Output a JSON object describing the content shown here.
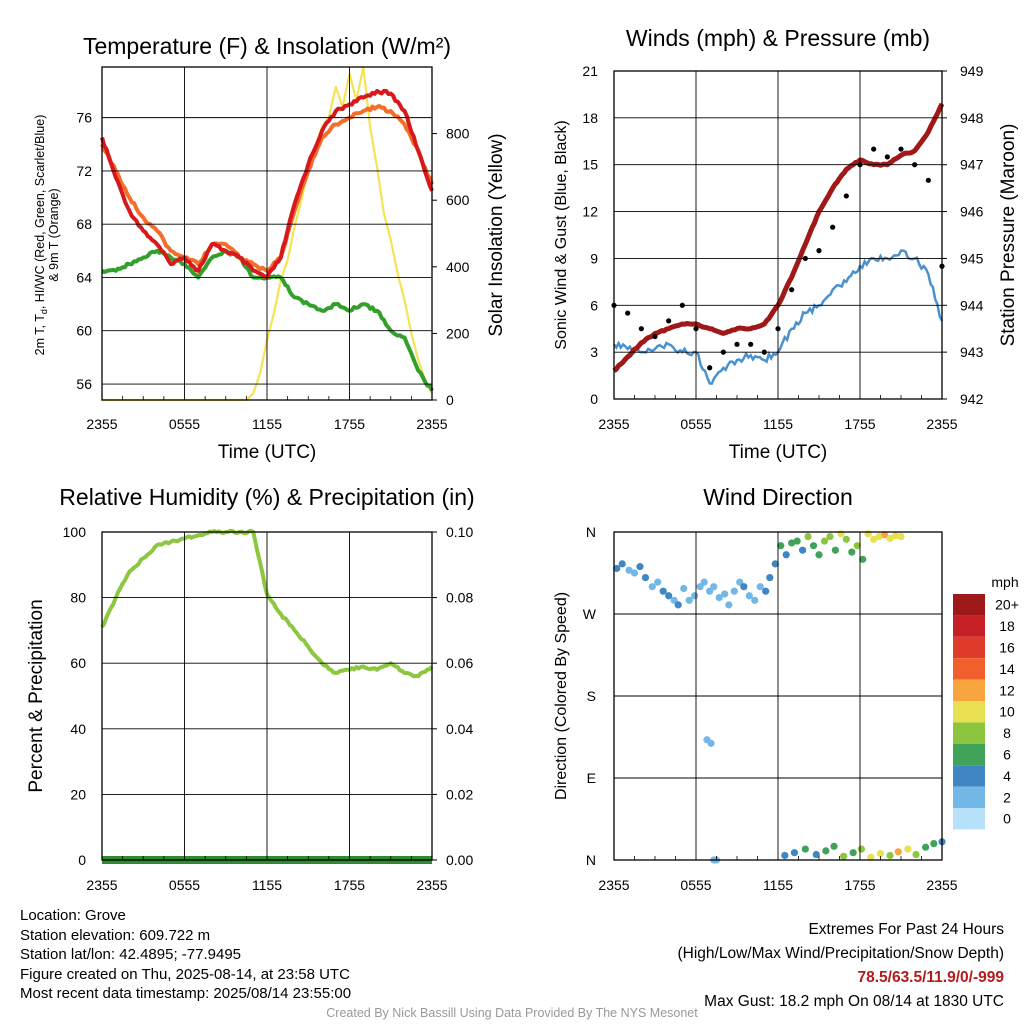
{
  "chart_data": [
    {
      "type": "line",
      "title": "Temperature (F) & Insolation (W/m²)",
      "xlabel": "Time (UTC)",
      "ylabel": "2m T, Td, HI/WC (Red, Green, Scarlet/Blue) & 9m T (Orange)",
      "ylabel_lines": [
        "2m T, T",
        "d",
        ", HI/WC (Red, Green, Scarlet/Blue)",
        "& 9m T (Orange)"
      ],
      "y2label": "Solar Insolation (Yellow)",
      "x_ticks": [
        "2355",
        "0555",
        "1155",
        "1755",
        "2355"
      ],
      "y_ticks": [
        "56",
        "60",
        "64",
        "68",
        "72",
        "76"
      ],
      "y2_ticks": [
        "0",
        "200",
        "400",
        "600",
        "800"
      ],
      "ylim": [
        54.8,
        79.8
      ],
      "y2lim": [
        0,
        1000
      ],
      "colors": {
        "temp_2m": "#d7191c",
        "dewpoint": "#33a02c",
        "heat_index": "#d7191c",
        "temp_9m": "#f46d2a",
        "insolation": "#f5e356"
      },
      "series": [
        {
          "name": "2m T",
          "x": [
            0,
            1,
            2,
            3,
            4,
            5,
            6,
            7,
            8,
            9,
            10,
            11,
            12,
            13,
            14,
            15,
            16,
            17,
            18,
            19,
            20,
            21,
            22,
            23,
            24
          ],
          "values": [
            74.5,
            71.5,
            69.0,
            67.5,
            66.5,
            65.0,
            65.5,
            64.5,
            66.5,
            66.0,
            65.5,
            64.5,
            64.0,
            65.5,
            69.5,
            72.5,
            75.0,
            76.5,
            77.0,
            77.5,
            78.0,
            77.8,
            76.5,
            73.5,
            70.5
          ]
        },
        {
          "name": "9m T",
          "x": [
            0,
            1,
            2,
            3,
            4,
            5,
            6,
            7,
            8,
            9,
            10,
            11,
            12,
            13,
            14,
            15,
            16,
            17,
            18,
            19,
            20,
            21,
            22,
            23,
            24
          ],
          "values": [
            74.0,
            72.0,
            70.0,
            68.5,
            67.5,
            66.0,
            65.5,
            65.0,
            66.5,
            66.5,
            65.5,
            65.0,
            64.5,
            65.5,
            69.0,
            72.0,
            74.5,
            75.5,
            76.0,
            76.5,
            76.8,
            76.5,
            75.5,
            73.5,
            71.0
          ]
        },
        {
          "name": "Td",
          "x": [
            0,
            1,
            2,
            3,
            4,
            5,
            6,
            7,
            8,
            9,
            10,
            11,
            12,
            13,
            14,
            15,
            16,
            17,
            18,
            19,
            20,
            21,
            22,
            23,
            24
          ],
          "values": [
            64.5,
            64.5,
            65.0,
            65.5,
            66.0,
            65.5,
            65.0,
            64.0,
            65.5,
            66.0,
            65.5,
            64.0,
            64.0,
            64.0,
            62.5,
            62.0,
            61.5,
            62.0,
            61.5,
            62.0,
            61.5,
            60.0,
            59.5,
            57.0,
            55.5
          ]
        },
        {
          "name": "Solar Insolation",
          "axis": "y2",
          "x": [
            0,
            10,
            10.5,
            11,
            11.5,
            12,
            12.5,
            13,
            13.5,
            14,
            14.5,
            15,
            15.5,
            16,
            16.5,
            17,
            17.5,
            18,
            18.5,
            19,
            19.5,
            20,
            20.5,
            21,
            21.5,
            22,
            22.5,
            23,
            23.5,
            24
          ],
          "values": [
            0,
            0,
            0,
            20,
            80,
            180,
            260,
            360,
            420,
            520,
            600,
            700,
            760,
            820,
            850,
            940,
            880,
            980,
            900,
            1000,
            820,
            700,
            560,
            480,
            380,
            300,
            200,
            120,
            60,
            20
          ]
        }
      ]
    },
    {
      "type": "scatter",
      "title": "Winds (mph) & Pressure (mb)",
      "xlabel": "Time (UTC)",
      "ylabel": "Sonic Wind & Gust (Blue, Black)",
      "y2label": "Station Pressure (Maroon)",
      "x_ticks": [
        "2355",
        "0555",
        "1155",
        "1755",
        "2355"
      ],
      "y_ticks": [
        "0",
        "3",
        "6",
        "9",
        "12",
        "15",
        "18",
        "21"
      ],
      "y2_ticks": [
        "942",
        "943",
        "944",
        "945",
        "946",
        "947",
        "948",
        "949"
      ],
      "ylim": [
        0,
        21
      ],
      "y2lim": [
        942,
        949
      ],
      "colors": {
        "wind": "#4a92cf",
        "gust": "#000000",
        "pressure": "#a01818"
      },
      "series": [
        {
          "name": "Sonic Wind",
          "x": [
            0,
            1,
            2,
            3,
            4,
            5,
            6,
            7,
            8,
            9,
            10,
            11,
            12,
            13,
            14,
            15,
            16,
            17,
            18,
            19,
            20,
            21,
            22,
            23,
            24
          ],
          "values": [
            3.5,
            3.2,
            3.0,
            3.2,
            3.5,
            3.0,
            3.0,
            1.0,
            2.0,
            2.5,
            2.8,
            2.5,
            3.0,
            4.5,
            5.5,
            6.0,
            7.0,
            7.5,
            8.5,
            9.0,
            9.0,
            9.5,
            9.0,
            8.0,
            5.0
          ]
        },
        {
          "name": "Gust",
          "x": [
            0,
            1,
            2,
            3,
            4,
            5,
            6,
            7,
            8,
            9,
            10,
            11,
            12,
            13,
            14,
            15,
            16,
            17,
            18,
            19,
            20,
            21,
            22,
            23,
            24
          ],
          "values": [
            6.0,
            5.5,
            4.5,
            4.0,
            5.0,
            6.0,
            4.5,
            2.0,
            3.0,
            3.5,
            3.5,
            3.0,
            4.5,
            7.0,
            9.0,
            9.5,
            11.0,
            13.0,
            15.0,
            16.0,
            15.5,
            16.0,
            15.0,
            14.0,
            8.5
          ]
        },
        {
          "name": "Station Pressure",
          "axis": "y2",
          "x": [
            0,
            1,
            2,
            3,
            4,
            5,
            6,
            7,
            8,
            9,
            10,
            11,
            12,
            13,
            14,
            15,
            16,
            17,
            18,
            19,
            20,
            21,
            22,
            23,
            24
          ],
          "values": [
            942.6,
            942.9,
            943.2,
            943.4,
            943.5,
            943.6,
            943.6,
            943.5,
            943.4,
            943.5,
            943.5,
            943.6,
            944.0,
            944.6,
            945.3,
            946.0,
            946.5,
            946.9,
            947.1,
            947.0,
            947.0,
            947.2,
            947.3,
            947.7,
            948.3
          ]
        }
      ]
    },
    {
      "type": "line",
      "title": "Relative Humidity (%) & Precipitation (in)",
      "ylabel": "Percent & Precipitation",
      "x_ticks": [
        "2355",
        "0555",
        "1155",
        "1755",
        "2355"
      ],
      "y_ticks": [
        "0",
        "20",
        "40",
        "60",
        "80",
        "100"
      ],
      "y2_ticks": [
        "0.00",
        "0.02",
        "0.04",
        "0.06",
        "0.08",
        "0.10"
      ],
      "ylim": [
        0,
        100
      ],
      "y2lim": [
        0,
        0.1
      ],
      "colors": {
        "rh": "#8dc63f",
        "precip": "#2e8b2e"
      },
      "series": [
        {
          "name": "Relative Humidity",
          "x": [
            0,
            1,
            2,
            3,
            4,
            5,
            6,
            7,
            8,
            9,
            10,
            11,
            12,
            13,
            14,
            15,
            16,
            17,
            18,
            19,
            20,
            21,
            22,
            23,
            24
          ],
          "values": [
            71,
            80,
            88,
            92,
            96,
            97,
            98,
            99,
            100,
            100,
            100,
            100,
            81,
            75,
            70,
            65,
            60,
            57,
            58,
            59,
            58,
            60,
            57,
            56,
            59
          ]
        },
        {
          "name": "Precipitation",
          "axis": "y2",
          "x": [
            0,
            24
          ],
          "values": [
            0.0,
            0.0
          ]
        }
      ]
    },
    {
      "type": "scatter",
      "title": "Wind Direction",
      "ylabel": "Direction (Colored By Speed)",
      "x_ticks": [
        "2355",
        "0555",
        "1155",
        "1755",
        "2355"
      ],
      "y_ticks": [
        "N",
        "E",
        "S",
        "W",
        "N"
      ],
      "ylim": [
        0,
        360
      ],
      "legend": {
        "title": "mph",
        "labels": [
          "20+",
          "18",
          "16",
          "14",
          "12",
          "10",
          "8",
          "6",
          "4",
          "2",
          "0"
        ],
        "colors": [
          "#9e1a1a",
          "#c62026",
          "#e03a2a",
          "#f0602c",
          "#f8a540",
          "#e8e051",
          "#8cc63f",
          "#41a35a",
          "#3f86c2",
          "#72b7e6",
          "#b6e1f8"
        ]
      },
      "series": [
        {
          "name": "Direction",
          "x": [
            0.2,
            0.6,
            1.1,
            1.5,
            1.9,
            2.3,
            2.8,
            3.2,
            3.6,
            4.0,
            4.4,
            4.7,
            5.1,
            5.5,
            5.9,
            6.3,
            6.6,
            7.0,
            7.3,
            7.7,
            8.1,
            8.4,
            8.8,
            9.2,
            9.5,
            9.9,
            10.3,
            10.7,
            11.1,
            11.4,
            11.8,
            12.2,
            12.6,
            13.0,
            13.4,
            13.8,
            14.2,
            14.6,
            15.0,
            15.4,
            15.8,
            16.2,
            16.6,
            17.0,
            17.4,
            17.8,
            18.2,
            18.6,
            19.0,
            19.4,
            19.8,
            20.2,
            20.6,
            21.0,
            12.5,
            13.2,
            14.0,
            14.8,
            15.5,
            16.1,
            16.8,
            17.5,
            18.1,
            18.8,
            19.5,
            20.2,
            20.8,
            21.5,
            22.1,
            22.8,
            23.4,
            24.0,
            6.8,
            7.1,
            7.3,
            7.5
          ],
          "values": [
            320,
            325,
            318,
            315,
            322,
            310,
            300,
            305,
            295,
            290,
            285,
            280,
            298,
            285,
            290,
            300,
            305,
            295,
            300,
            288,
            292,
            280,
            295,
            305,
            300,
            290,
            285,
            300,
            295,
            310,
            325,
            345,
            335,
            348,
            350,
            340,
            355,
            345,
            335,
            350,
            355,
            340,
            358,
            352,
            338,
            345,
            330,
            358,
            352,
            355,
            357,
            353,
            356,
            355,
            5,
            8,
            12,
            6,
            10,
            15,
            4,
            8,
            12,
            3,
            7,
            5,
            9,
            12,
            6,
            14,
            18,
            20,
            132,
            128,
            0,
            0
          ],
          "speeds": [
            3,
            3,
            2,
            2,
            3,
            3,
            2,
            2,
            3,
            3,
            2,
            3,
            2,
            1,
            1,
            2,
            1,
            2,
            2,
            2,
            2,
            1,
            2,
            2,
            3,
            2,
            2,
            2,
            3,
            4,
            4,
            5,
            4,
            5,
            6,
            4,
            7,
            6,
            5,
            7,
            8,
            6,
            9,
            7,
            5,
            8,
            6,
            10,
            9,
            10,
            11,
            9,
            10,
            10,
            4,
            4,
            5,
            4,
            6,
            5,
            7,
            6,
            8,
            9,
            10,
            8,
            11,
            9,
            7,
            6,
            5,
            4,
            1,
            1,
            1,
            1
          ]
        }
      ]
    }
  ],
  "info": {
    "location": "Location: Grove",
    "elevation": "Station elevation: 609.722 m",
    "latlon": "Station lat/lon: 42.4895; -77.9495",
    "created": "Figure created on Thu, 2025-08-14, at 23:58 UTC",
    "recent": "Most recent data timestamp: 2025/08/14 23:55:00"
  },
  "extremes": {
    "title": "Extremes For Past 24 Hours",
    "subtitle": "(High/Low/Max Wind/Precipitation/Snow Depth)",
    "values": "78.5/63.5/11.9/0/-999",
    "gust": "Max Gust: 18.2 mph On 08/14 at 1830 UTC"
  },
  "credit": "Created By Nick Bassill Using Data Provided By The NYS Mesonet"
}
